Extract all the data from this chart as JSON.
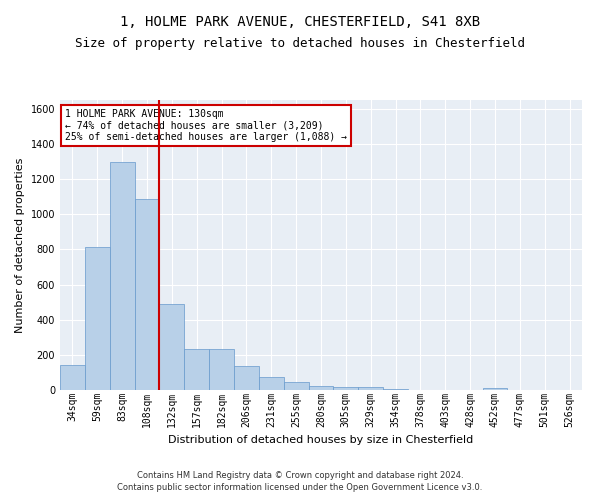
{
  "title_line1": "1, HOLME PARK AVENUE, CHESTERFIELD, S41 8XB",
  "title_line2": "Size of property relative to detached houses in Chesterfield",
  "xlabel": "Distribution of detached houses by size in Chesterfield",
  "ylabel": "Number of detached properties",
  "footer_line1": "Contains HM Land Registry data © Crown copyright and database right 2024.",
  "footer_line2": "Contains public sector information licensed under the Open Government Licence v3.0.",
  "categories": [
    "34sqm",
    "59sqm",
    "83sqm",
    "108sqm",
    "132sqm",
    "157sqm",
    "182sqm",
    "206sqm",
    "231sqm",
    "255sqm",
    "280sqm",
    "305sqm",
    "329sqm",
    "354sqm",
    "378sqm",
    "403sqm",
    "428sqm",
    "452sqm",
    "477sqm",
    "501sqm",
    "526sqm"
  ],
  "values": [
    140,
    815,
    1295,
    1085,
    490,
    235,
    235,
    135,
    75,
    45,
    25,
    15,
    15,
    5,
    0,
    0,
    0,
    10,
    0,
    0,
    0
  ],
  "bar_color": "#b8d0e8",
  "bar_edge_color": "#6699cc",
  "vline_color": "#cc0000",
  "vline_x": 3.5,
  "annotation_text_line1": "1 HOLME PARK AVENUE: 130sqm",
  "annotation_text_line2": "← 74% of detached houses are smaller (3,209)",
  "annotation_text_line3": "25% of semi-detached houses are larger (1,088) →",
  "annotation_box_color": "#cc0000",
  "ylim": [
    0,
    1650
  ],
  "yticks": [
    0,
    200,
    400,
    600,
    800,
    1000,
    1200,
    1400,
    1600
  ],
  "bg_color": "#e8eef5",
  "grid_color": "#ffffff",
  "title_fontsize": 10,
  "subtitle_fontsize": 9,
  "ylabel_fontsize": 8,
  "xlabel_fontsize": 8,
  "tick_fontsize": 7,
  "footer_fontsize": 6
}
